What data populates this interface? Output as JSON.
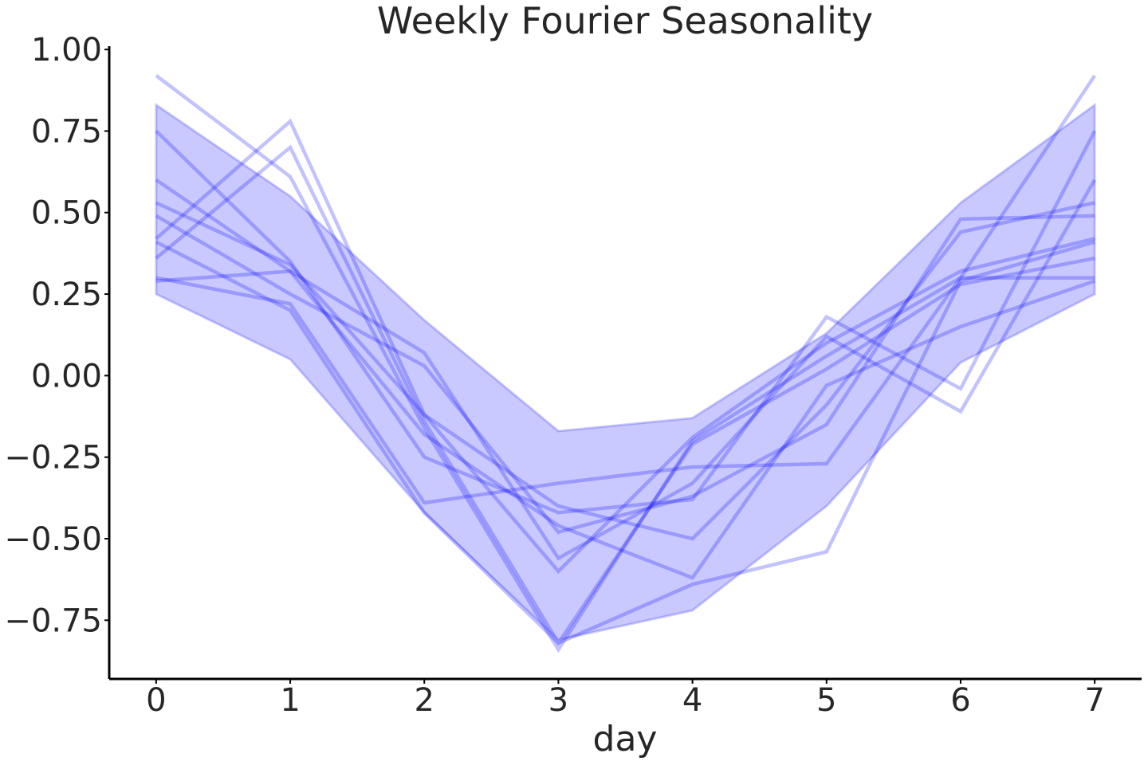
{
  "chart_data": {
    "type": "line",
    "title": "Weekly Fourier Seasonality",
    "xlabel": "day",
    "ylabel": "",
    "xlim": [
      -0.35,
      7.35
    ],
    "ylim": [
      -0.93,
      1.01
    ],
    "x": [
      0,
      1,
      2,
      3,
      4,
      5,
      6,
      7
    ],
    "x_ticks": [
      {
        "value": 0,
        "label": "0"
      },
      {
        "value": 1,
        "label": "1"
      },
      {
        "value": 2,
        "label": "2"
      },
      {
        "value": 3,
        "label": "3"
      },
      {
        "value": 4,
        "label": "4"
      },
      {
        "value": 5,
        "label": "5"
      },
      {
        "value": 6,
        "label": "6"
      },
      {
        "value": 7,
        "label": "7"
      }
    ],
    "y_ticks": [
      {
        "value": 1.0,
        "label": "1.00"
      },
      {
        "value": 0.75,
        "label": "0.75"
      },
      {
        "value": 0.5,
        "label": "0.50"
      },
      {
        "value": 0.25,
        "label": "0.25"
      },
      {
        "value": 0.0,
        "label": "0.00"
      },
      {
        "value": -0.25,
        "label": "−0.25"
      },
      {
        "value": -0.5,
        "label": "−0.50"
      },
      {
        "value": -0.75,
        "label": "−0.75"
      }
    ],
    "band": {
      "lower": [
        0.25,
        0.05,
        -0.42,
        -0.81,
        -0.72,
        -0.4,
        0.04,
        0.25
      ],
      "upper": [
        0.83,
        0.55,
        0.17,
        -0.17,
        -0.13,
        0.13,
        0.53,
        0.83
      ]
    },
    "series": [
      {
        "values": [
          0.92,
          0.61,
          -0.16,
          -0.84,
          -0.2,
          0.06,
          0.3,
          0.92
        ]
      },
      {
        "values": [
          0.42,
          0.78,
          -0.12,
          -0.6,
          -0.19,
          0.1,
          0.32,
          0.42
        ]
      },
      {
        "values": [
          0.36,
          0.7,
          -0.14,
          -0.82,
          -0.21,
          0.02,
          0.28,
          0.36
        ]
      },
      {
        "values": [
          0.75,
          0.35,
          -0.25,
          -0.42,
          -0.38,
          0.18,
          -0.04,
          0.75
        ]
      },
      {
        "values": [
          0.6,
          0.32,
          0.07,
          -0.56,
          -0.33,
          0.12,
          -0.11,
          0.6
        ]
      },
      {
        "values": [
          0.53,
          0.34,
          -0.12,
          -0.4,
          -0.5,
          -0.09,
          0.44,
          0.53
        ]
      },
      {
        "values": [
          0.49,
          0.25,
          0.03,
          -0.48,
          -0.37,
          -0.15,
          0.48,
          0.49
        ]
      },
      {
        "values": [
          0.41,
          0.2,
          -0.42,
          -0.82,
          -0.64,
          -0.54,
          0.29,
          0.41
        ]
      },
      {
        "values": [
          0.3,
          0.22,
          -0.39,
          -0.33,
          -0.28,
          -0.27,
          0.3,
          0.3
        ]
      },
      {
        "values": [
          0.29,
          0.32,
          -0.18,
          -0.46,
          -0.62,
          -0.03,
          0.15,
          0.29
        ]
      }
    ],
    "grid": false,
    "legend": "none"
  }
}
